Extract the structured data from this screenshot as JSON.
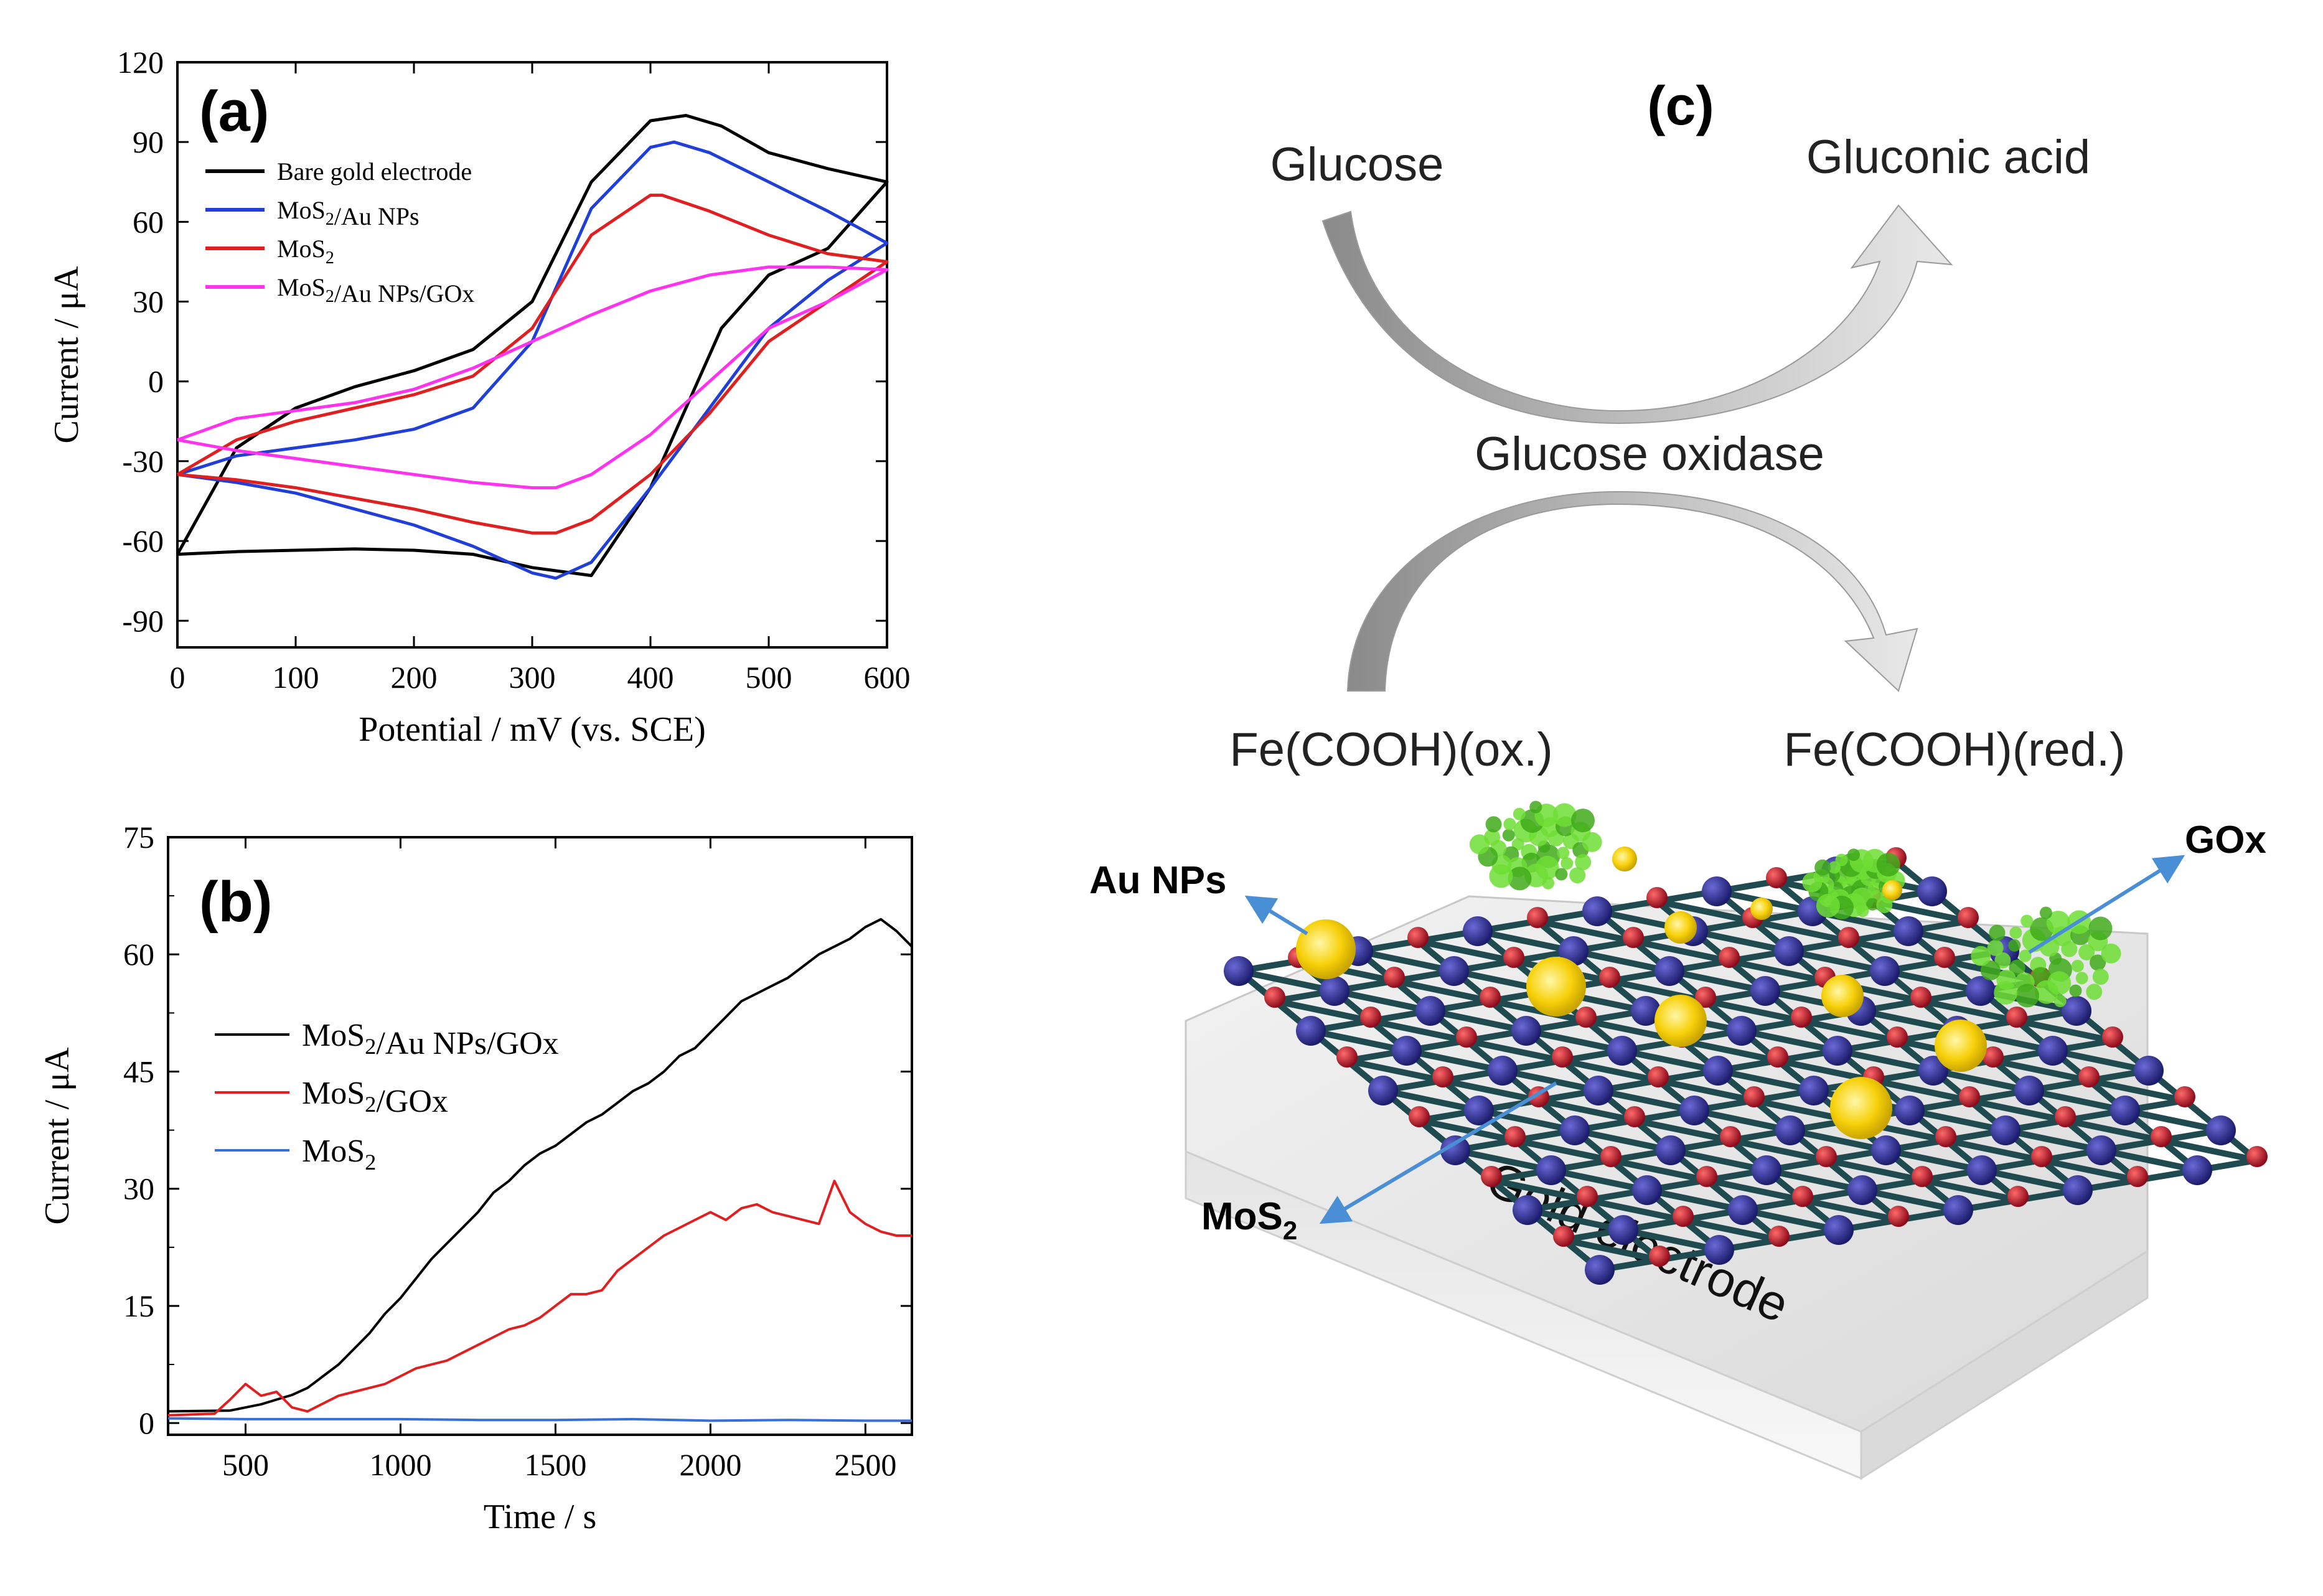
{
  "chart_data": [
    {
      "panel": "(a)",
      "type": "line",
      "xlabel": "Potential / mV (vs. SCE)",
      "ylabel": "Current / μA",
      "xlim": [
        0,
        600
      ],
      "ylim": [
        -100,
        120
      ],
      "xticks": [
        0,
        100,
        200,
        300,
        400,
        500,
        600
      ],
      "yticks": [
        -90,
        -60,
        -30,
        0,
        30,
        60,
        90,
        120
      ],
      "grid": false,
      "legend_position": "top-left",
      "series": [
        {
          "name": "Bare gold electrode",
          "color": "#000000",
          "forward": {
            "x": [
              0,
              50,
              100,
              150,
              200,
              250,
              300,
              350,
              400,
              430,
              460,
              500,
              550,
              600
            ],
            "y": [
              -65,
              -64,
              -63.5,
              -63,
              -63.5,
              -65,
              -70,
              -73,
              -40,
              -10,
              20,
              40,
              50,
              75
            ]
          },
          "reverse": {
            "x": [
              600,
              550,
              500,
              460,
              430,
              400,
              350,
              300,
              250,
              200,
              150,
              100,
              50,
              0
            ],
            "y": [
              75,
              80,
              86,
              96,
              100,
              98,
              75,
              30,
              12,
              4,
              -2,
              -10,
              -25,
              -65
            ]
          }
        },
        {
          "name": "MoS2/Au NPs",
          "color": "#1f3fd8",
          "forward": {
            "x": [
              0,
              50,
              100,
              150,
              200,
              250,
              300,
              320,
              350,
              400,
              450,
              500,
              550,
              600
            ],
            "y": [
              -35,
              -38,
              -42,
              -48,
              -54,
              -62,
              -72,
              -74,
              -68,
              -40,
              -10,
              20,
              38,
              52
            ]
          },
          "reverse": {
            "x": [
              600,
              550,
              500,
              450,
              420,
              400,
              350,
              300,
              250,
              200,
              150,
              100,
              50,
              0
            ],
            "y": [
              52,
              64,
              75,
              86,
              90,
              88,
              65,
              15,
              -10,
              -18,
              -22,
              -25,
              -28,
              -35
            ]
          }
        },
        {
          "name": "MoS2",
          "color": "#e02020",
          "forward": {
            "x": [
              0,
              50,
              100,
              150,
              200,
              250,
              300,
              320,
              350,
              400,
              450,
              500,
              550,
              600
            ],
            "y": [
              -35,
              -37,
              -40,
              -44,
              -48,
              -53,
              -57,
              -57,
              -52,
              -35,
              -12,
              15,
              30,
              45
            ]
          },
          "reverse": {
            "x": [
              600,
              550,
              500,
              450,
              410,
              400,
              350,
              300,
              250,
              200,
              150,
              100,
              50,
              0
            ],
            "y": [
              45,
              48,
              55,
              64,
              70,
              70,
              55,
              20,
              2,
              -5,
              -10,
              -15,
              -22,
              -35
            ]
          }
        },
        {
          "name": "MoS2/Au NPs/GOx",
          "color": "#ff33ee",
          "forward": {
            "x": [
              0,
              50,
              100,
              150,
              200,
              250,
              300,
              320,
              350,
              400,
              450,
              500,
              550,
              600
            ],
            "y": [
              -22,
              -26,
              -29,
              -32,
              -35,
              -38,
              -40,
              -40,
              -35,
              -20,
              0,
              20,
              30,
              42
            ]
          },
          "reverse": {
            "x": [
              600,
              550,
              500,
              450,
              400,
              350,
              300,
              250,
              200,
              150,
              100,
              50,
              0
            ],
            "y": [
              42,
              43,
              43,
              40,
              34,
              25,
              15,
              5,
              -3,
              -8,
              -11,
              -14,
              -22
            ]
          }
        }
      ]
    },
    {
      "panel": "(b)",
      "type": "line",
      "xlabel": "Time / s",
      "ylabel": "Current / μA",
      "xlim": [
        250,
        2650
      ],
      "ylim": [
        -1.5,
        75
      ],
      "xticks": [
        500,
        1000,
        1500,
        2000,
        2500
      ],
      "yticks": [
        0,
        15,
        30,
        45,
        60,
        75
      ],
      "grid": false,
      "legend_position": "top-left",
      "series": [
        {
          "name": "MoS2/Au NPs/GOx",
          "color": "#000000",
          "x": [
            250,
            450,
            500,
            550,
            600,
            650,
            700,
            750,
            800,
            850,
            900,
            950,
            1000,
            1050,
            1100,
            1150,
            1200,
            1250,
            1300,
            1350,
            1400,
            1450,
            1500,
            1550,
            1600,
            1650,
            1700,
            1750,
            1800,
            1850,
            1900,
            1950,
            2000,
            2050,
            2100,
            2150,
            2200,
            2250,
            2300,
            2350,
            2400,
            2450,
            2500,
            2550,
            2600,
            2650
          ],
          "y": [
            1.5,
            1.6,
            2.0,
            2.4,
            3.0,
            3.6,
            4.5,
            6.0,
            7.5,
            9.5,
            11.5,
            14.0,
            16.0,
            18.5,
            21.0,
            23.0,
            25.0,
            27.0,
            29.5,
            31.0,
            33.0,
            34.5,
            35.5,
            37.0,
            38.5,
            39.5,
            41.0,
            42.5,
            43.5,
            45.0,
            47.0,
            48.0,
            50.0,
            52.0,
            54.0,
            55.0,
            56.0,
            57.0,
            58.5,
            60.0,
            61.0,
            62.0,
            63.5,
            64.5,
            63.0,
            61.0
          ]
        },
        {
          "name": "MoS2/GOx",
          "color": "#e02020",
          "x": [
            250,
            400,
            450,
            500,
            550,
            600,
            650,
            700,
            750,
            800,
            850,
            900,
            950,
            1000,
            1050,
            1100,
            1150,
            1200,
            1250,
            1300,
            1350,
            1400,
            1450,
            1500,
            1550,
            1600,
            1650,
            1700,
            1750,
            1800,
            1850,
            1900,
            1950,
            2000,
            2050,
            2100,
            2150,
            2200,
            2250,
            2300,
            2350,
            2400,
            2450,
            2500,
            2550,
            2600,
            2650
          ],
          "y": [
            1.0,
            1.2,
            3.0,
            5.0,
            3.5,
            4.0,
            2.0,
            1.5,
            2.5,
            3.5,
            4.0,
            4.5,
            5.0,
            6.0,
            7.0,
            7.5,
            8.0,
            9.0,
            10.0,
            11.0,
            12.0,
            12.5,
            13.5,
            15.0,
            16.5,
            16.5,
            17.0,
            19.5,
            21.0,
            22.5,
            24.0,
            25.0,
            26.0,
            27.0,
            26.0,
            27.5,
            28.0,
            27.0,
            26.5,
            26.0,
            25.5,
            31.0,
            27.0,
            25.5,
            24.5,
            24.0,
            24.0
          ]
        },
        {
          "name": "MoS2",
          "color": "#3a6fd8",
          "x": [
            250,
            500,
            750,
            1000,
            1250,
            1500,
            1750,
            2000,
            2250,
            2500,
            2650
          ],
          "y": [
            0.6,
            0.5,
            0.5,
            0.5,
            0.4,
            0.4,
            0.5,
            0.3,
            0.4,
            0.3,
            0.3
          ]
        }
      ]
    }
  ],
  "panel_a": {
    "label": "(a)",
    "legend": [
      "Bare gold electrode",
      "MoS2/Au NPs",
      "MoS2",
      "MoS2/Au NPs/GOx"
    ]
  },
  "panel_b": {
    "label": "(b)",
    "legend": [
      "MoS2/Au NPs/GOx",
      "MoS2/GOx",
      "MoS2"
    ]
  },
  "panel_c": {
    "label": "(c)",
    "glucose": "Glucose",
    "gluconic_acid": "Gluconic acid",
    "enzyme": "Glucose oxidase",
    "fe_ox": "Fe(COOH)(ox.)",
    "fe_red": "Fe(COOH)(red.)",
    "au_nps": "Au NPs",
    "gox": "GOx",
    "mos2": "MoS2",
    "electrode": "Gold electrode",
    "colors": {
      "mo_atom": "#2a2a8c",
      "s_atom": "#c8102e",
      "bond": "#1f4a50",
      "au_np": "#f7d10a",
      "gox_protein": "#5fd02a",
      "arrow": "#4a8fd6",
      "block": "#e6e6e6"
    }
  }
}
